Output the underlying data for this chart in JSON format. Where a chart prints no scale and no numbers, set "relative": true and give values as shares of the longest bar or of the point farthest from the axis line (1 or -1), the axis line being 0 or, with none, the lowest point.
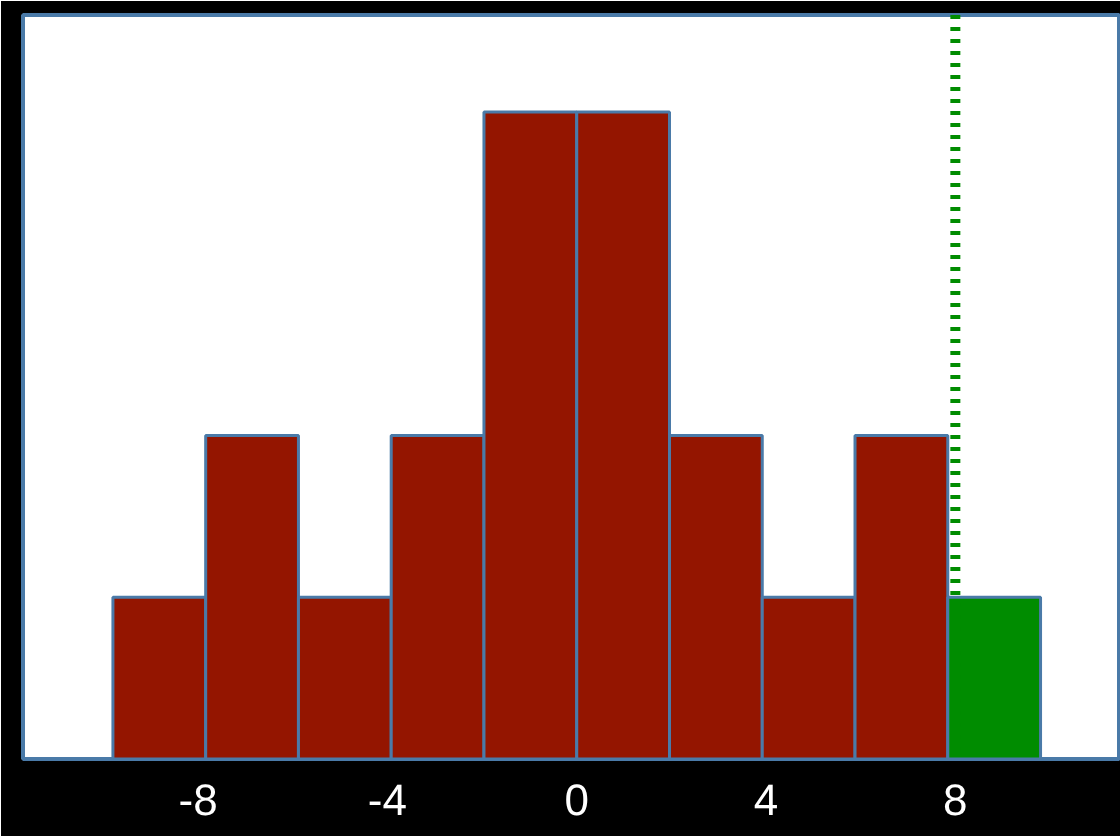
{
  "chart_data": {
    "type": "bar",
    "relative": true,
    "x": [
      -8.82,
      -6.86,
      -4.9,
      -2.94,
      -0.98,
      0.98,
      2.94,
      4.9,
      6.86,
      8.82
    ],
    "values": [
      0.25,
      0.5,
      0.25,
      0.5,
      1,
      1,
      0.5,
      0.25,
      0.5,
      0.25
    ],
    "colors": [
      "#941500",
      "#941500",
      "#941500",
      "#941500",
      "#941500",
      "#941500",
      "#941500",
      "#941500",
      "#941500",
      "#008c00"
    ],
    "xlim": [
      -11.7,
      11.5
    ],
    "xticks": [
      -8,
      -4,
      0,
      4,
      8
    ],
    "tick_labels": "x",
    "grid": false,
    "ref_lines": [
      {
        "axis": "x",
        "value": 8,
        "color": "#008c00",
        "line_style": "dotted"
      }
    ]
  }
}
